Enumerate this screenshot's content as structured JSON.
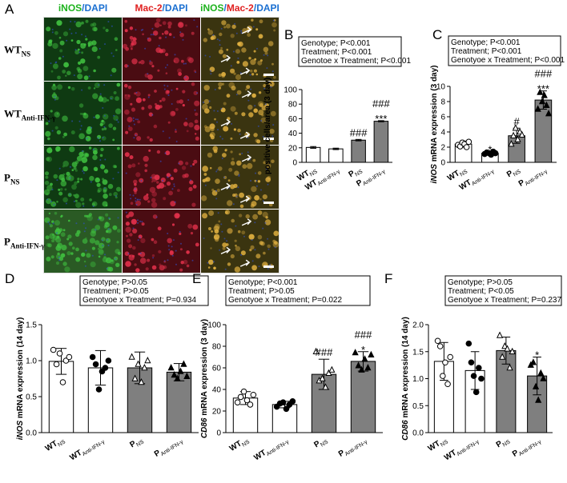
{
  "micrograph": {
    "label": "A",
    "columns": [
      [
        {
          "t": "iNOS",
          "c": "#1db31d"
        },
        {
          "t": "/",
          "c": "#1a6fd1"
        },
        {
          "t": "DAPI",
          "c": "#1a6fd1"
        }
      ],
      [
        {
          "t": "Mac-2",
          "c": "#e02020"
        },
        {
          "t": "/",
          "c": "#1a6fd1"
        },
        {
          "t": "DAPI",
          "c": "#1a6fd1"
        }
      ],
      [
        {
          "t": "iNOS",
          "c": "#1db31d"
        },
        {
          "t": "/",
          "c": "#1a6fd1"
        },
        {
          "t": "Mac-2",
          "c": "#e02020"
        },
        {
          "t": "/",
          "c": "#1a6fd1"
        },
        {
          "t": "DAPI",
          "c": "#1a6fd1"
        }
      ]
    ],
    "rows": [
      {
        "main": "WT",
        "sub": "NS"
      },
      {
        "main": "WT",
        "sub": "Anti-IFN-γ"
      },
      {
        "main": "P",
        "sub": "NS"
      },
      {
        "main": "P",
        "sub": "Anti-IFN-γ"
      }
    ],
    "tile_colors": {
      "inos": "#0f3a12",
      "mac2": "#4a0c12",
      "merge": "#3a3410",
      "inos_row4": "#2a5a24"
    }
  },
  "chart_data": [
    {
      "panel": "B",
      "type": "bar",
      "categories": [
        "WT_NS",
        "WT_Anti-IFN-γ",
        "P_NS",
        "P_Anti-IFN-γ"
      ],
      "values": [
        20.5,
        18.5,
        30.5,
        56.5
      ],
      "errors": [
        1.2,
        1.0,
        1.0,
        0.8
      ],
      "ylabel": "positive cells/area (3 day)",
      "ylim": [
        0,
        100
      ],
      "yticks": [
        0,
        20,
        40,
        60,
        80,
        100
      ],
      "stats": [
        "Genotype; P<0.001",
        "Treatment; P<0.001",
        "Genotoe x Treatment; P<0.001"
      ],
      "annotations": [
        {
          "index": 2,
          "lines": [
            "###"
          ]
        },
        {
          "index": 3,
          "lines": [
            "###",
            "***"
          ]
        }
      ],
      "points": []
    },
    {
      "panel": "C",
      "type": "bar",
      "categories": [
        "WT_NS",
        "WT_Anti-IFN-γ",
        "P_NS",
        "P_Anti-IFN-γ"
      ],
      "values": [
        2.4,
        1.2,
        3.5,
        8.2
      ],
      "errors": [
        0.4,
        0.2,
        1.0,
        1.2
      ],
      "ylabel": "iNOS mRNA expression (3 day)",
      "ylim": [
        0,
        10
      ],
      "yticks": [
        0,
        2,
        4,
        6,
        8,
        10
      ],
      "stats": [
        "Genotype; P<0.001",
        "Treatment; P<0.001",
        "Genotyoe x Treatment; P<0.001"
      ],
      "annotations": [
        {
          "index": 1,
          "lines": [
            "*"
          ]
        },
        {
          "index": 2,
          "lines": [
            "#"
          ]
        },
        {
          "index": 3,
          "lines": [
            "###",
            "***"
          ]
        }
      ],
      "points": [
        [
          2.3,
          2.1,
          2.6,
          2.4,
          2.0,
          2.7
        ],
        [
          1.1,
          1.3,
          1.2,
          1.0,
          1.4,
          1.2
        ],
        [
          2.4,
          3.5,
          4.5,
          3.0,
          4.0,
          3.6
        ],
        [
          7.0,
          9.2,
          8.0,
          8.8,
          7.5,
          6.4
        ]
      ]
    },
    {
      "panel": "D",
      "type": "bar",
      "categories": [
        "WT_NS",
        "WT_Anti-IFN-γ",
        "P_NS",
        "P_Anti-IFN-γ"
      ],
      "values": [
        0.99,
        0.9,
        0.9,
        0.84
      ],
      "errors": [
        0.18,
        0.24,
        0.22,
        0.12
      ],
      "ylabel": "iNOS mRNA expression (14 day)",
      "ylim": [
        0,
        1.5
      ],
      "yticks": [
        0,
        0.5,
        1.0,
        1.5
      ],
      "stats": [
        "Genotype; P>0.05",
        "Treatment; P>0.05",
        "Genotyoe x Treatment; P=0.934"
      ],
      "annotations": [],
      "points": [
        [
          1.15,
          0.95,
          1.1,
          0.7,
          1.0,
          1.05
        ],
        [
          1.05,
          0.95,
          0.6,
          0.85,
          0.9,
          1.0
        ],
        [
          1.05,
          0.75,
          0.95,
          0.7,
          0.9,
          1.0
        ],
        [
          0.9,
          0.8,
          0.75,
          0.85,
          0.95,
          0.78
        ]
      ]
    },
    {
      "panel": "E",
      "type": "bar",
      "categories": [
        "WT_NS",
        "WT_Anti-IFN-γ",
        "P_NS",
        "P_Anti-IFN-γ"
      ],
      "values": [
        32,
        26,
        54,
        66
      ],
      "errors": [
        6,
        3,
        14,
        9
      ],
      "ylabel": "CD86 mRNA expression (3 day)",
      "ylim": [
        0,
        100
      ],
      "yticks": [
        0,
        20,
        40,
        60,
        80,
        100
      ],
      "stats": [
        "Genotype;  P<0.001",
        "Treatment; P>0.05",
        "Genotyoe x Treatment; P=0.022"
      ],
      "annotations": [
        {
          "index": 2,
          "lines": [
            "###"
          ]
        },
        {
          "index": 3,
          "lines": [
            "###",
            "*"
          ]
        }
      ],
      "points": [
        [
          28,
          33,
          38,
          30,
          26,
          35
        ],
        [
          24,
          27,
          28,
          22,
          26,
          29
        ],
        [
          75,
          48,
          50,
          42,
          55,
          58
        ],
        [
          74,
          62,
          58,
          68,
          60,
          72
        ]
      ]
    },
    {
      "panel": "F",
      "type": "bar",
      "categories": [
        "WT_NS",
        "WT_Anti-IFN-γ",
        "P_NS",
        "P_Anti-IFN-γ"
      ],
      "values": [
        1.32,
        1.15,
        1.52,
        1.05
      ],
      "errors": [
        0.35,
        0.35,
        0.25,
        0.35
      ],
      "ylabel": "CD86 mRNA expression (14 day)",
      "ylim": [
        0,
        2.0
      ],
      "yticks": [
        0,
        0.5,
        1.0,
        1.5,
        2.0
      ],
      "stats": [
        "Genotype; P>0.05",
        "Treatment; P<0.05",
        "Genotyoe x Treatment; P=0.237"
      ],
      "annotations": [
        {
          "index": 3,
          "lines": [
            "*"
          ]
        }
      ],
      "points": [
        [
          1.7,
          1.6,
          1.05,
          1.3,
          0.9,
          1.4
        ],
        [
          1.65,
          1.3,
          1.05,
          0.75,
          1.2,
          1.0
        ],
        [
          1.8,
          1.4,
          1.6,
          1.55,
          1.2,
          1.5
        ],
        [
          1.25,
          1.3,
          0.85,
          0.6,
          1.1,
          1.0
        ]
      ]
    }
  ],
  "styles": {
    "wt_fill": "#ffffff",
    "p_fill": "#7f7f7f",
    "axis": "#000000",
    "markers": [
      "circle-open",
      "circle-filled",
      "triangle-open",
      "triangle-filled"
    ]
  }
}
